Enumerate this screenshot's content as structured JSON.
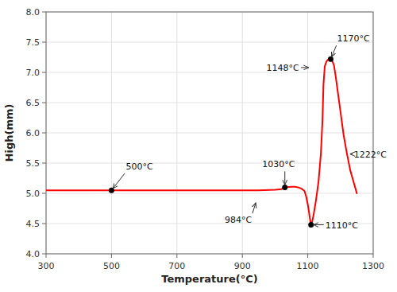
{
  "chart_data": {
    "type": "line",
    "xlabel": "Temperature(°C)",
    "ylabel": "High(mm)",
    "x": [
      300,
      400,
      500,
      600,
      700,
      800,
      900,
      950,
      1000,
      1020,
      1030,
      1050,
      1060,
      1070,
      1080,
      1090,
      1095,
      1100,
      1103,
      1106,
      1110,
      1113,
      1118,
      1125,
      1133,
      1140,
      1145,
      1148,
      1152,
      1157,
      1162,
      1167,
      1170,
      1172,
      1175,
      1180,
      1185,
      1190,
      1195,
      1200,
      1210,
      1220,
      1230,
      1250
    ],
    "series": [
      {
        "color": "red",
        "values": [
          5.05,
          5.05,
          5.05,
          5.05,
          5.05,
          5.05,
          5.05,
          5.05,
          5.06,
          5.07,
          5.1,
          5.11,
          5.11,
          5.1,
          5.08,
          5.04,
          4.95,
          4.82,
          4.72,
          4.6,
          4.48,
          4.52,
          4.65,
          4.88,
          5.2,
          5.65,
          6.2,
          6.8,
          7.1,
          7.18,
          7.21,
          7.22,
          7.22,
          7.21,
          7.19,
          7.12,
          6.95,
          6.75,
          6.55,
          6.35,
          5.95,
          5.65,
          5.38,
          5.0
        ]
      },
      {
        "type": "scatter",
        "color": "black",
        "x": [
          500,
          1030,
          1110,
          1170
        ],
        "values": [
          5.05,
          5.1,
          4.48,
          7.22
        ]
      }
    ],
    "annotations": [
      {
        "text": "500°C",
        "x": 500,
        "y": 5.05
      },
      {
        "text": "984°C",
        "x": 943,
        "y": 4.88
      },
      {
        "text": "1030°C",
        "x": 1030,
        "y": 5.1
      },
      {
        "text": "1148°C",
        "x": 1110,
        "y": 7.08
      },
      {
        "text": "1170°C",
        "x": 1170,
        "y": 7.22
      },
      {
        "text": "1222°C",
        "x": 1222,
        "y": 5.65
      },
      {
        "text": "1110°C",
        "x": 1110,
        "y": 4.48
      }
    ],
    "xlim": [
      300,
      1300
    ],
    "ylim": [
      4.0,
      8.0
    ],
    "xticks": [
      300,
      500,
      700,
      900,
      1100,
      1300
    ],
    "yticks": [
      {
        "value": 4.0,
        "label": "4.0"
      },
      4.5,
      {
        "value": 5.0,
        "label": "5.0"
      },
      5.5,
      {
        "value": 6.0,
        "label": "6.0"
      },
      6.5,
      {
        "value": 7.0,
        "label": "7.0"
      },
      7.5,
      {
        "value": 8.0,
        "label": "8.0"
      }
    ],
    "grid": true
  }
}
